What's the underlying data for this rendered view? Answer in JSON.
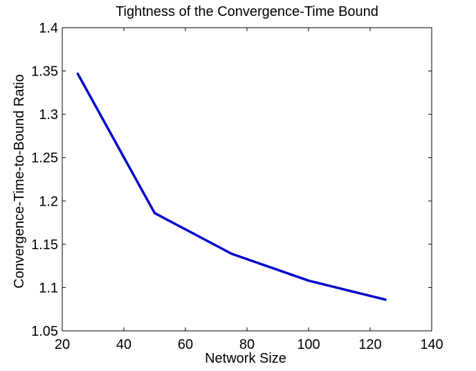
{
  "chart_data": {
    "type": "line",
    "title": "Tightness of the Convergence-Time Bound",
    "xlabel": "Network Size",
    "ylabel": "Convergence-Time-to-Bound Ratio",
    "xlim": [
      20,
      140
    ],
    "ylim": [
      1.05,
      1.4
    ],
    "xticks": [
      "20",
      "40",
      "60",
      "80",
      "100",
      "120",
      "140"
    ],
    "yticks": [
      "1.05",
      "1.1",
      "1.15",
      "1.2",
      "1.25",
      "1.3",
      "1.35",
      "1.4"
    ],
    "grid": false,
    "series": [
      {
        "color": "#0000cc",
        "x": [
          25,
          50,
          75,
          100,
          125
        ],
        "y": [
          1.347,
          1.186,
          1.139,
          1.108,
          1.086
        ]
      }
    ]
  }
}
